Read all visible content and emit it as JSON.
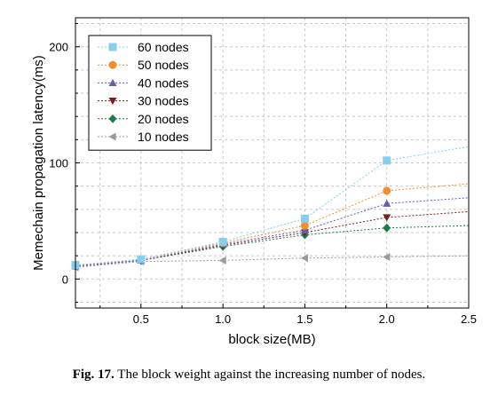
{
  "chart_data": {
    "type": "line",
    "xlabel": "block size(MB)",
    "ylabel": "Memechain propagation latency(ms)",
    "xlim": [
      0.1,
      2.5
    ],
    "ylim": [
      -25,
      225
    ],
    "x_ticks": [
      0.5,
      1.0,
      1.5,
      2.0,
      2.5
    ],
    "x_tick_labels": [
      "0.5",
      "1.0",
      "1.5",
      "2.0",
      "2.5"
    ],
    "y_ticks": [
      0,
      100,
      200
    ],
    "y_tick_labels": [
      "0",
      "100",
      "200"
    ],
    "grid": true,
    "legend_position": "top-left",
    "series": [
      {
        "name": "60 nodes",
        "color": "#87CEEB",
        "marker": "square",
        "x": [
          0.1,
          0.5,
          1.0,
          1.5,
          2.0,
          2.5
        ],
        "y": [
          12,
          17,
          32,
          52,
          102,
          114
        ]
      },
      {
        "name": "50 nodes",
        "color": "#F28E2B",
        "marker": "circle",
        "x": [
          0.1,
          0.5,
          1.0,
          1.5,
          2.0,
          2.5
        ],
        "y": [
          12,
          17,
          31,
          46,
          76,
          82
        ]
      },
      {
        "name": "40 nodes",
        "color": "#6A5AB0",
        "marker": "triangle-up",
        "x": [
          0.1,
          0.5,
          1.0,
          1.5,
          2.0,
          2.5
        ],
        "y": [
          11,
          16,
          30,
          42,
          65,
          70
        ]
      },
      {
        "name": "30 nodes",
        "color": "#7B1F1F",
        "marker": "triangle-down",
        "x": [
          0.1,
          0.5,
          1.0,
          1.5,
          2.0,
          2.5
        ],
        "y": [
          11,
          16,
          29,
          40,
          53,
          58
        ]
      },
      {
        "name": "20 nodes",
        "color": "#1E7B4B",
        "marker": "diamond",
        "x": [
          0.1,
          0.5,
          1.0,
          1.5,
          2.0,
          2.5
        ],
        "y": [
          11,
          16,
          28,
          38,
          44,
          46
        ]
      },
      {
        "name": "10 nodes",
        "color": "#9A9A9A",
        "marker": "triangle-left",
        "x": [
          0.1,
          0.5,
          1.0,
          1.5,
          2.0,
          2.5
        ],
        "y": [
          10,
          15,
          16,
          18,
          19,
          20
        ]
      }
    ]
  },
  "caption": {
    "label": "Fig. 17.",
    "text": "The block weight against the increasing number of nodes."
  }
}
